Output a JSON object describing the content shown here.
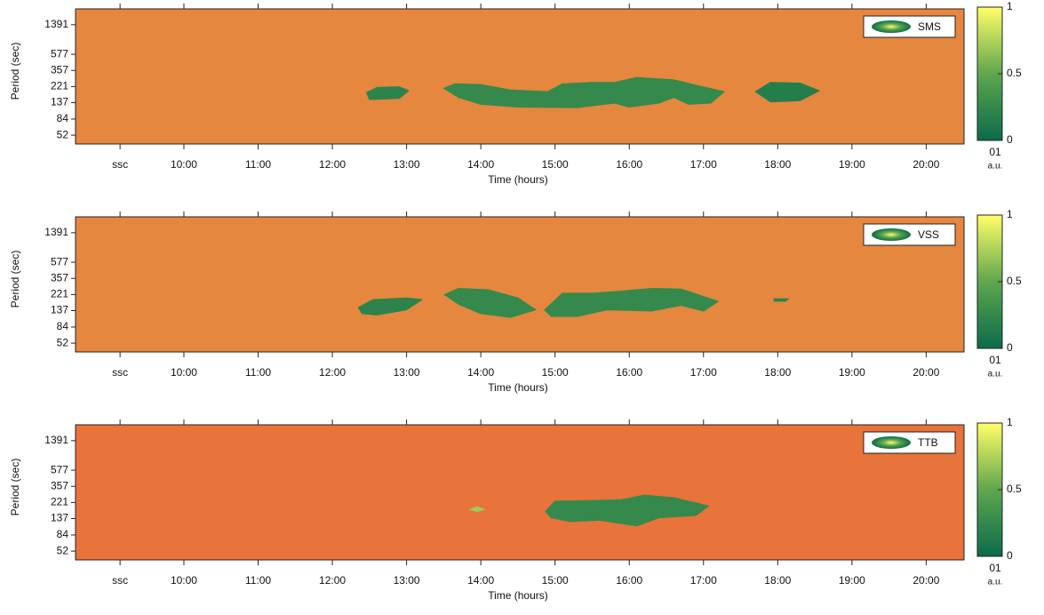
{
  "chart_data": [
    {
      "type": "contour",
      "xlabel": "Time (hours)",
      "ylabel": "Period (sec)",
      "xlim": [
        8.54,
        20.51
      ],
      "xticks": [
        {
          "value": 9.14,
          "label": "ssc"
        },
        {
          "value": 10,
          "label": "10:00"
        },
        {
          "value": 11,
          "label": "11:00"
        },
        {
          "value": 12,
          "label": "12:00"
        },
        {
          "value": 13,
          "label": "13:00"
        },
        {
          "value": 14,
          "label": "14:00"
        },
        {
          "value": 15,
          "label": "15:00"
        },
        {
          "value": 16,
          "label": "16:00"
        },
        {
          "value": 17,
          "label": "17:00"
        },
        {
          "value": 18,
          "label": "18:00"
        },
        {
          "value": 19,
          "label": "19:00"
        },
        {
          "value": 20,
          "label": "20:00"
        }
      ],
      "ylim": [
        40,
        2230
      ],
      "yticks": [
        52,
        84,
        137,
        221,
        357,
        577,
        1391
      ],
      "log_y": true,
      "background": "#e5873f",
      "colorscale": [
        "#0b6b4a",
        "#5fa64e",
        "#ffff66"
      ],
      "colorbar": {
        "lim": [
          0,
          1
        ],
        "ticks": [
          0,
          0.5,
          1
        ],
        "label": "a.u.",
        "bottom_text": "01"
      },
      "series": [
        {
          "name": "SMS",
          "regions": [
            {
              "value": 0.2,
              "x": [
                12.46,
                12.6,
                12.9,
                13.03,
                12.9,
                12.5
              ],
              "y": [
                185,
                215,
                220,
                195,
                155,
                150
              ]
            },
            {
              "value": 0.25,
              "x": [
                13.5,
                13.65,
                14.0,
                14.4,
                14.9,
                15.1,
                15.5,
                15.8,
                16.1,
                16.6,
                16.9,
                17.28,
                17.1,
                16.8,
                16.6,
                16.4,
                16.0,
                15.8,
                15.3,
                14.5,
                14.0,
                13.7
              ],
              "y": [
                210,
                240,
                235,
                200,
                190,
                240,
                250,
                250,
                290,
                270,
                230,
                190,
                135,
                130,
                160,
                135,
                120,
                135,
                118,
                120,
                130,
                160
              ]
            },
            {
              "value": 0.15,
              "x": [
                17.7,
                17.9,
                18.3,
                18.56,
                18.3,
                17.9
              ],
              "y": [
                190,
                250,
                245,
                195,
                145,
                140
              ]
            }
          ]
        }
      ]
    },
    {
      "type": "contour",
      "xlabel": "Time (hours)",
      "ylabel": "Period (sec)",
      "xlim": [
        8.54,
        20.51
      ],
      "xticks": [
        {
          "value": 9.14,
          "label": "ssc"
        },
        {
          "value": 10,
          "label": "10:00"
        },
        {
          "value": 11,
          "label": "11:00"
        },
        {
          "value": 12,
          "label": "12:00"
        },
        {
          "value": 13,
          "label": "13:00"
        },
        {
          "value": 14,
          "label": "14:00"
        },
        {
          "value": 15,
          "label": "15:00"
        },
        {
          "value": 16,
          "label": "16:00"
        },
        {
          "value": 17,
          "label": "17:00"
        },
        {
          "value": 18,
          "label": "18:00"
        },
        {
          "value": 19,
          "label": "19:00"
        },
        {
          "value": 20,
          "label": "20:00"
        }
      ],
      "ylim": [
        40,
        2230
      ],
      "yticks": [
        52,
        84,
        137,
        221,
        357,
        577,
        1391
      ],
      "log_y": true,
      "background": "#e5873f",
      "colorscale": [
        "#0b6b4a",
        "#5fa64e",
        "#ffff66"
      ],
      "colorbar": {
        "lim": [
          0,
          1
        ],
        "ticks": [
          0,
          0.5,
          1
        ],
        "label": "a.u.",
        "bottom_text": "01"
      },
      "series": [
        {
          "name": "VSS",
          "regions": [
            {
              "value": 0.2,
              "x": [
                12.35,
                12.55,
                13.0,
                13.21,
                13.0,
                12.6,
                12.4
              ],
              "y": [
                150,
                190,
                200,
                190,
                140,
                120,
                125
              ]
            },
            {
              "value": 0.25,
              "x": [
                13.51,
                13.7,
                14.1,
                14.5,
                14.74,
                14.4,
                14.0,
                13.7
              ],
              "y": [
                220,
                265,
                255,
                200,
                140,
                112,
                125,
                165
              ]
            },
            {
              "value": 0.25,
              "x": [
                14.86,
                15.1,
                15.5,
                15.9,
                16.3,
                16.7,
                17.2,
                17.0,
                16.7,
                16.3,
                15.7,
                15.3,
                14.95
              ],
              "y": [
                140,
                230,
                230,
                245,
                265,
                260,
                180,
                135,
                160,
                135,
                140,
                115,
                115
              ]
            },
            {
              "value": 0.2,
              "x": [
                17.95,
                18.15,
                18.1,
                17.95
              ],
              "y": [
                195,
                195,
                180,
                182
              ]
            }
          ]
        }
      ]
    },
    {
      "type": "contour",
      "xlabel": "Time (hours)",
      "ylabel": "Period (sec)",
      "xlim": [
        8.54,
        20.51
      ],
      "xticks": [
        {
          "value": 9.14,
          "label": "ssc"
        },
        {
          "value": 10,
          "label": "10:00"
        },
        {
          "value": 11,
          "label": "11:00"
        },
        {
          "value": 12,
          "label": "12:00"
        },
        {
          "value": 13,
          "label": "13:00"
        },
        {
          "value": 14,
          "label": "14:00"
        },
        {
          "value": 15,
          "label": "15:00"
        },
        {
          "value": 16,
          "label": "16:00"
        },
        {
          "value": 17,
          "label": "17:00"
        },
        {
          "value": 18,
          "label": "18:00"
        },
        {
          "value": 19,
          "label": "19:00"
        },
        {
          "value": 20,
          "label": "20:00"
        }
      ],
      "ylim": [
        40,
        2230
      ],
      "yticks": [
        52,
        84,
        137,
        221,
        357,
        577,
        1391
      ],
      "log_y": true,
      "background": "#e8733b",
      "colorscale": [
        "#0b6b4a",
        "#5fa64e",
        "#ffff66"
      ],
      "colorbar": {
        "lim": [
          0,
          1
        ],
        "ticks": [
          0,
          0.5,
          1
        ],
        "label": "a.u.",
        "bottom_text": "01"
      },
      "series": [
        {
          "name": "TTB",
          "regions": [
            {
              "value": 0.7,
              "x": [
                13.85,
                13.95,
                14.05,
                13.95
              ],
              "y": [
                180,
                195,
                180,
                168
              ]
            },
            {
              "value": 0.25,
              "x": [
                14.87,
                15.0,
                15.5,
                15.9,
                16.2,
                16.6,
                17.07,
                16.9,
                16.4,
                16.1,
                15.6,
                15.2,
                14.95
              ],
              "y": [
                170,
                230,
                235,
                240,
                275,
                255,
                200,
                150,
                140,
                110,
                130,
                125,
                140
              ]
            }
          ]
        }
      ]
    }
  ]
}
